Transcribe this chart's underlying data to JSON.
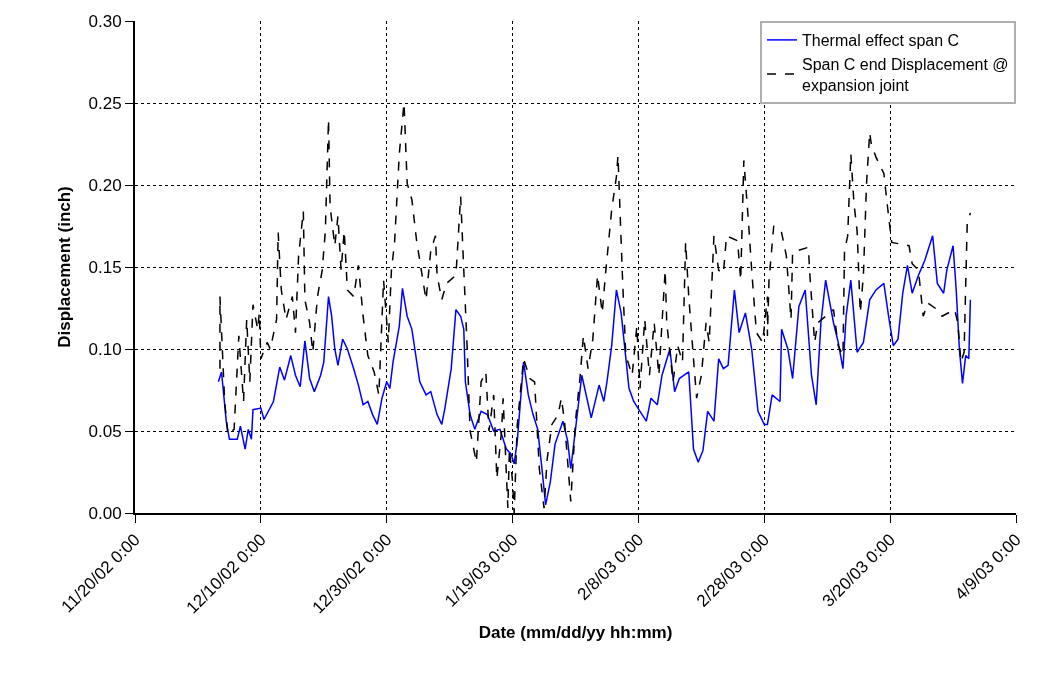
{
  "chart_data": {
    "type": "line",
    "xlabel": "Date (mm/dd/yy hh:mm)",
    "ylabel": "Displacement (inch)",
    "xlim": [
      "2002-11-20",
      "2003-04-09"
    ],
    "xticks": [
      {
        "value": "2002-11-20",
        "label": "11/20/02 0:00"
      },
      {
        "value": "2002-12-10",
        "label": "12/10/02 0:00"
      },
      {
        "value": "2002-12-30",
        "label": "12/30/02 0:00"
      },
      {
        "value": "2003-01-19",
        "label": "1/19/03 0:00"
      },
      {
        "value": "2003-02-08",
        "label": "2/8/03 0:00"
      },
      {
        "value": "2003-02-28",
        "label": "2/28/03 0:00"
      },
      {
        "value": "2003-03-20",
        "label": "3/20/03 0:00"
      },
      {
        "value": "2003-04-09",
        "label": "4/9/03 0:00"
      }
    ],
    "ylim": [
      0,
      0.3
    ],
    "yticks": [
      {
        "value": 0,
        "label": "0.00"
      },
      {
        "value": 0.05,
        "label": "0.05"
      },
      {
        "value": 0.1,
        "label": "0.10"
      },
      {
        "value": 0.15,
        "label": "0.15"
      },
      {
        "value": 0.2,
        "label": "0.20"
      },
      {
        "value": 0.25,
        "label": "0.25"
      },
      {
        "value": 0.3,
        "label": "0.30"
      }
    ],
    "grid": true,
    "legend": "top right",
    "marker": "none",
    "series": [
      {
        "name": "Thermal effect span C",
        "color": "#0000ff",
        "line_style": "solid",
        "x": [
          "2002-12-03T06:00",
          "2002-12-03T18:00",
          "2002-12-04T12:00",
          "2002-12-05T00:00",
          "2002-12-06T06:00",
          "2002-12-06T18:00",
          "2002-12-07T12:00",
          "2002-12-08T00:00",
          "2002-12-08T12:00",
          "2002-12-08T18:00",
          "2002-12-10T00:00",
          "2002-12-10T12:00",
          "2002-12-12T00:00",
          "2002-12-13T00:00",
          "2002-12-13T18:00",
          "2002-12-14T18:00",
          "2002-12-15T12:00",
          "2002-12-16T06:00",
          "2002-12-17T00:00",
          "2002-12-17T18:00",
          "2002-12-18T12:00",
          "2002-12-19T12:00",
          "2002-12-20T00:00",
          "2002-12-20T18:00",
          "2002-12-21T06:00",
          "2002-12-21T18:00",
          "2002-12-22T06:00",
          "2002-12-23T00:00",
          "2002-12-23T18:00",
          "2002-12-24T18:00",
          "2002-12-25T12:00",
          "2002-12-26T06:00",
          "2002-12-27T00:00",
          "2002-12-27T18:00",
          "2002-12-28T12:00",
          "2002-12-29T06:00",
          "2002-12-30T00:00",
          "2002-12-30T12:00",
          "2002-12-31T00:00",
          "2003-01-01T00:00",
          "2003-01-01T12:00",
          "2003-01-02T06:00",
          "2003-01-03T00:00",
          "2003-01-04T06:00",
          "2003-01-05T06:00",
          "2003-01-06T00:00",
          "2003-01-07T00:00",
          "2003-01-07T18:00",
          "2003-01-08T06:00",
          "2003-01-09T06:00",
          "2003-01-10T00:00",
          "2003-01-10T18:00",
          "2003-01-11T06:00",
          "2003-01-11T12:00",
          "2003-01-12T06:00",
          "2003-01-13T00:00",
          "2003-01-14T00:00",
          "2003-01-15T00:00",
          "2003-01-16T00:00",
          "2003-01-17T00:00",
          "2003-01-18T00:00",
          "2003-01-18T18:00",
          "2003-01-19T06:00",
          "2003-01-19T18:00",
          "2003-01-20T18:00",
          "2003-01-21T12:00",
          "2003-01-22T06:00",
          "2003-01-23T00:00",
          "2003-01-23T18:00",
          "2003-01-24T06:00",
          "2003-01-25T00:00",
          "2003-01-25T18:00",
          "2003-01-27T00:00",
          "2003-01-27T18:00",
          "2003-01-28T06:00",
          "2003-01-29T00:00",
          "2003-01-30T00:00",
          "2003-01-31T12:00",
          "2003-02-01T18:00",
          "2003-02-02T12:00",
          "2003-02-03T00:00",
          "2003-02-03T18:00",
          "2003-02-04T12:00",
          "2003-02-05T06:00",
          "2003-02-06T12:00",
          "2003-02-07T06:00",
          "2003-02-08T06:00",
          "2003-02-09T06:00",
          "2003-02-10T00:00",
          "2003-02-11T00:00",
          "2003-02-11T18:00",
          "2003-02-13T00:00",
          "2003-02-13T18:00",
          "2003-02-14T12:00",
          "2003-02-15T06:00",
          "2003-02-16T00:00",
          "2003-02-16T18:00",
          "2003-02-17T12:00",
          "2003-02-18T06:00",
          "2003-02-19T00:00",
          "2003-02-20T00:00",
          "2003-02-20T18:00",
          "2003-02-21T12:00",
          "2003-02-22T06:00",
          "2003-02-23T06:00",
          "2003-02-24T00:00",
          "2003-02-25T00:00",
          "2003-02-26T00:00",
          "2003-02-27T00:00",
          "2003-02-28T00:00",
          "2003-02-28T12:00",
          "2003-03-01T06:00",
          "2003-03-02T12:00",
          "2003-03-02T18:00",
          "2003-03-03T18:00",
          "2003-03-04T12:00",
          "2003-03-05T12:00",
          "2003-03-06T12:00",
          "2003-03-07T12:00",
          "2003-03-08T06:00",
          "2003-03-09T00:00",
          "2003-03-09T18:00",
          "2003-03-11T00:00",
          "2003-03-11T18:00",
          "2003-03-12T12:00",
          "2003-03-13T00:00",
          "2003-03-13T18:00",
          "2003-03-14T18:00",
          "2003-03-15T18:00",
          "2003-03-16T18:00",
          "2003-03-17T18:00",
          "2003-03-19T00:00",
          "2003-03-19T18:00",
          "2003-03-20T12:00",
          "2003-03-21T06:00",
          "2003-03-22T00:00",
          "2003-03-22T18:00",
          "2003-03-23T12:00",
          "2003-03-24T12:00",
          "2003-03-25T12:00",
          "2003-03-26T18:00",
          "2003-03-27T12:00",
          "2003-03-28T12:00",
          "2003-03-29T00:00",
          "2003-03-30T00:00",
          "2003-03-30T12:00",
          "2003-03-31T00:00",
          "2003-03-31T12:00",
          "2003-04-01T00:00",
          "2003-04-01T12:00",
          "2003-04-01T18:00"
        ],
        "values": [
          0.08,
          0.086,
          0.056,
          0.045,
          0.045,
          0.053,
          0.039,
          0.051,
          0.045,
          0.063,
          0.064,
          0.057,
          0.068,
          0.089,
          0.081,
          0.096,
          0.084,
          0.077,
          0.105,
          0.082,
          0.074,
          0.084,
          0.092,
          0.132,
          0.12,
          0.1,
          0.09,
          0.106,
          0.1,
          0.088,
          0.078,
          0.066,
          0.068,
          0.06,
          0.054,
          0.07,
          0.08,
          0.076,
          0.092,
          0.114,
          0.137,
          0.12,
          0.112,
          0.08,
          0.072,
          0.074,
          0.06,
          0.054,
          0.064,
          0.088,
          0.124,
          0.12,
          0.112,
          0.08,
          0.06,
          0.051,
          0.062,
          0.06,
          0.05,
          0.051,
          0.039,
          0.036,
          0.03,
          0.044,
          0.092,
          0.072,
          0.06,
          0.051,
          0.024,
          0.005,
          0.019,
          0.042,
          0.056,
          0.044,
          0.027,
          0.051,
          0.084,
          0.058,
          0.078,
          0.068,
          0.08,
          0.102,
          0.136,
          0.122,
          0.076,
          0.068,
          0.062,
          0.056,
          0.07,
          0.066,
          0.084,
          0.1,
          0.074,
          0.082,
          0.084,
          0.086,
          0.039,
          0.031,
          0.038,
          0.062,
          0.056,
          0.094,
          0.088,
          0.09,
          0.136,
          0.11,
          0.122,
          0.1,
          0.062,
          0.054,
          0.054,
          0.072,
          0.068,
          0.112,
          0.1,
          0.082,
          0.126,
          0.136,
          0.084,
          0.066,
          0.116,
          0.142,
          0.116,
          0.104,
          0.088,
          0.12,
          0.142,
          0.098,
          0.104,
          0.13,
          0.136,
          0.14,
          0.12,
          0.102,
          0.106,
          0.134,
          0.151,
          0.134,
          0.145,
          0.154,
          0.169,
          0.14,
          0.134,
          0.148,
          0.163,
          0.136,
          0.1,
          0.079,
          0.096,
          0.094,
          0.13
        ]
      },
      {
        "name": "Span C end Displacement @ expansion joint",
        "color": "#000000",
        "line_style": "dashed",
        "x": [
          "2002-12-03T12:00",
          "2002-12-03T12:00",
          "2002-12-04T06:00",
          "2002-12-04T18:00",
          "2002-12-05T18:00",
          "2002-12-06T12:00",
          "2002-12-07T06:00",
          "2002-12-07T18:00",
          "2002-12-08T06:00",
          "2002-12-08T18:00",
          "2002-12-09T12:00",
          "2002-12-09T18:00",
          "2002-12-10T00:00",
          "2002-12-11T00:00",
          "2002-12-11T12:00",
          "2002-12-12T12:00",
          "2002-12-12T18:00",
          "2002-12-13T06:00",
          "2002-12-14T00:00",
          "2002-12-15T00:00",
          "2002-12-15T12:00",
          "2002-12-16T00:00",
          "2002-12-16T18:00",
          "2002-12-17T00:00",
          "2002-12-17T18:00",
          "2002-12-18T06:00",
          "2002-12-19T00:00",
          "2002-12-19T18:00",
          "2002-12-20T06:00",
          "2002-12-20T18:00",
          "2002-12-21T00:00",
          "2002-12-21T18:00",
          "2002-12-22T06:00",
          "2002-12-22T18:00",
          "2002-12-23T06:00",
          "2002-12-23T18:00",
          "2002-12-24T18:00",
          "2002-12-25T12:00",
          "2002-12-26T06:00",
          "2002-12-27T00:00",
          "2002-12-28T00:00",
          "2002-12-28T18:00",
          "2002-12-29T12:00",
          "2002-12-30T06:00",
          "2002-12-30T18:00",
          "2002-12-31T06:00",
          "2003-01-01T00:00",
          "2003-01-01T18:00",
          "2003-01-02T06:00",
          "2003-01-03T00:00",
          "2003-01-03T18:00",
          "2003-01-04T12:00",
          "2003-01-05T06:00",
          "2003-01-06T00:00",
          "2003-01-06T18:00",
          "2003-01-07T00:00",
          "2003-01-07T18:00",
          "2003-01-08T12:00",
          "2003-01-10T00:00",
          "2003-01-10T18:00",
          "2003-01-11T06:00",
          "2003-01-11T18:00",
          "2003-01-12T06:00",
          "2003-01-13T06:00",
          "2003-01-14T00:00",
          "2003-01-14T18:00",
          "2003-01-15T06:00",
          "2003-01-16T00:00",
          "2003-01-16T12:00",
          "2003-01-17T06:00",
          "2003-01-17T12:00",
          "2003-01-18T06:00",
          "2003-01-18T12:00",
          "2003-01-19T00:00",
          "2003-01-19T06:00",
          "2003-01-19T18:00",
          "2003-01-20T18:00",
          "2003-01-21T18:00",
          "2003-01-22T12:00",
          "2003-01-23T06:00",
          "2003-01-24T00:00",
          "2003-01-24T12:00",
          "2003-01-25T06:00",
          "2003-01-26T06:00",
          "2003-01-26T18:00",
          "2003-01-27T06:00",
          "2003-01-28T06:00",
          "2003-01-29T00:00",
          "2003-01-29T18:00",
          "2003-01-30T06:00",
          "2003-01-31T00:00",
          "2003-01-31T18:00",
          "2003-02-01T12:00",
          "2003-02-02T06:00",
          "2003-02-02T18:00",
          "2003-02-03T18:00",
          "2003-02-04T12:00",
          "2003-02-04T18:00",
          "2003-02-05T06:00",
          "2003-02-05T12:00",
          "2003-02-06T00:00",
          "2003-02-07T00:00",
          "2003-02-07T18:00",
          "2003-02-08T06:00",
          "2003-02-09T00:00",
          "2003-02-09T18:00",
          "2003-02-10T12:00",
          "2003-02-11T06:00",
          "2003-02-12T06:00",
          "2003-02-12T12:00",
          "2003-02-13T12:00",
          "2003-02-14T06:00",
          "2003-02-15T00:00",
          "2003-02-15T12:00",
          "2003-02-16T00:00",
          "2003-02-16T18:00",
          "2003-02-17T06:00",
          "2003-02-18T00:00",
          "2003-02-18T18:00",
          "2003-02-19T06:00",
          "2003-02-20T00:00",
          "2003-02-20T18:00",
          "2003-02-21T12:00",
          "2003-02-22T00:00",
          "2003-02-23T18:00",
          "2003-02-24T06:00",
          "2003-02-24T18:00",
          "2003-02-25T12:00",
          "2003-02-26T00:00",
          "2003-02-26T18:00",
          "2003-02-27T18:00",
          "2003-02-28T12:00",
          "2003-02-28T12:00",
          "2003-02-28T18:00",
          "2003-03-01T12:00",
          "2003-03-02T18:00",
          "2003-03-03T12:00",
          "2003-03-04T06:00",
          "2003-03-04T12:00",
          "2003-03-07T00:00",
          "2003-03-07T06:00",
          "2003-03-08T00:00",
          "2003-03-08T12:00",
          "2003-03-09T18:00",
          "2003-03-11T00:00",
          "2003-03-11T18:00",
          "2003-03-12T12:00",
          "2003-03-12T18:00",
          "2003-03-13T06:00",
          "2003-03-13T18:00",
          "2003-03-14T06:00",
          "2003-03-14T18:00",
          "2003-03-15T06:00",
          "2003-03-15T18:00",
          "2003-03-16T06:00",
          "2003-03-16T18:00",
          "2003-03-17T00:00",
          "2003-03-17T18:00",
          "2003-03-19T00:00",
          "2003-03-19T18:00",
          "2003-03-20T06:00",
          "2003-03-23T00:00",
          "2003-03-23T12:00",
          "2003-03-24T12:00",
          "2003-03-25T06:00",
          "2003-03-26T00:00",
          "2003-03-27T12:00",
          "2003-03-28T06:00",
          "2003-03-30T06:00",
          "2003-03-30T18:00",
          "2003-03-31T06:00",
          "2003-03-31T18:00",
          "2003-04-01T06:00",
          "2003-04-01T18:00"
        ],
        "values": [
          0.088,
          0.132,
          0.068,
          0.048,
          0.051,
          0.108,
          0.068,
          0.118,
          0.08,
          0.127,
          0.112,
          0.122,
          0.094,
          0.104,
          0.1,
          0.118,
          0.171,
          0.136,
          0.118,
          0.132,
          0.11,
          0.157,
          0.184,
          0.13,
          0.116,
          0.098,
          0.132,
          0.148,
          0.172,
          0.24,
          0.187,
          0.163,
          0.181,
          0.148,
          0.172,
          0.136,
          0.132,
          0.151,
          0.12,
          0.096,
          0.086,
          0.072,
          0.142,
          0.104,
          0.148,
          0.165,
          0.219,
          0.25,
          0.201,
          0.191,
          0.166,
          0.148,
          0.13,
          0.16,
          0.169,
          0.145,
          0.13,
          0.14,
          0.145,
          0.193,
          0.148,
          0.104,
          0.05,
          0.031,
          0.08,
          0.086,
          0.05,
          0.072,
          0.021,
          0.05,
          0.07,
          0.003,
          0.039,
          0.019,
          0.0,
          0.054,
          0.094,
          0.082,
          0.08,
          0.027,
          0.003,
          0.033,
          0.054,
          0.06,
          0.07,
          0.056,
          0.007,
          0.056,
          0.084,
          0.108,
          0.088,
          0.106,
          0.145,
          0.122,
          0.145,
          0.185,
          0.205,
          0.218,
          0.166,
          0.14,
          0.096,
          0.084,
          0.114,
          0.076,
          0.118,
          0.084,
          0.116,
          0.084,
          0.148,
          0.116,
          0.08,
          0.102,
          0.092,
          0.165,
          0.132,
          0.094,
          0.07,
          0.084,
          0.116,
          0.104,
          0.169,
          0.148,
          0.146,
          0.169,
          0.166,
          0.142,
          0.215,
          0.177,
          0.148,
          0.11,
          0.104,
          0.132,
          0.108,
          0.142,
          0.175,
          0.171,
          0.157,
          0.118,
          0.159,
          0.162,
          0.145,
          0.104,
          0.116,
          0.12,
          0.124,
          0.102,
          0.096,
          0.16,
          0.169,
          0.219,
          0.189,
          0.172,
          0.122,
          0.145,
          0.201,
          0.232,
          0.225,
          0.217,
          0.207,
          0.181,
          0.165,
          0.163,
          0.152,
          0.148,
          0.12,
          0.128,
          0.124,
          0.12,
          0.124,
          0.116,
          0.092,
          0.098,
          0.177,
          0.183
        ]
      }
    ]
  }
}
